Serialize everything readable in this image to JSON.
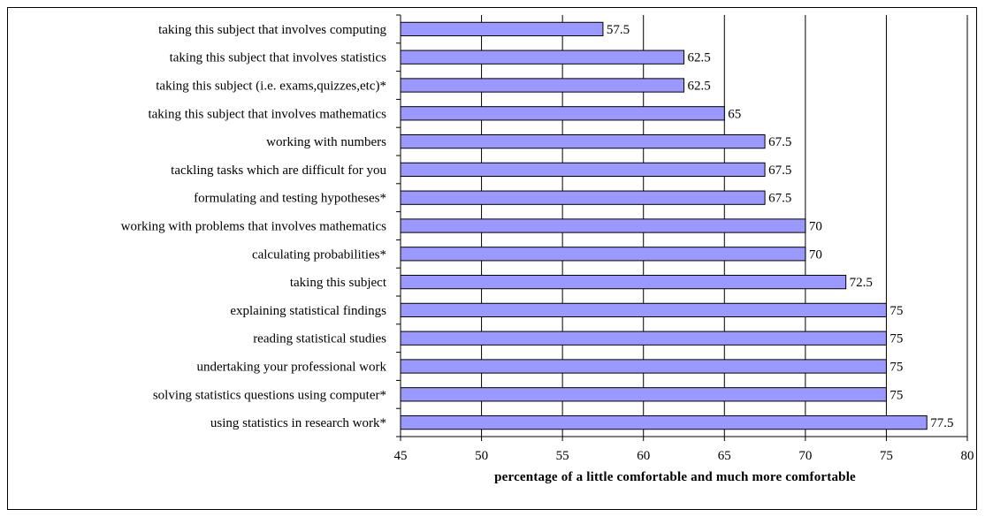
{
  "chart_data": {
    "type": "bar",
    "orientation": "horizontal",
    "categories": [
      "taking this subject that involves computing",
      "taking this subject that involves statistics",
      "taking this subject (i.e. exams,quizzes,etc)*",
      "taking this subject that involves mathematics",
      "working with numbers",
      "tackling tasks which are difficult for you",
      "formulating and testing hypotheses*",
      "working with problems that involves mathematics",
      "calculating probabilities*",
      "taking this subject",
      "explaining statistical findings",
      "reading statistical studies",
      "undertaking your professional work",
      "solving statistics questions using computer*",
      "using statistics in research work*"
    ],
    "values": [
      57.5,
      62.5,
      62.5,
      65,
      67.5,
      67.5,
      67.5,
      70,
      70,
      72.5,
      75,
      75,
      75,
      75,
      77.5
    ],
    "value_labels": [
      "57.5",
      "62.5",
      "62.5",
      "65",
      "67.5",
      "67.5",
      "67.5",
      "70",
      "70",
      "72.5",
      "75",
      "75",
      "75",
      "75",
      "77.5"
    ],
    "xlabel": "percentage of a little comfortable and much more comfortable",
    "ylabel": "",
    "xlim": [
      45,
      80
    ],
    "xticks": [
      45,
      50,
      55,
      60,
      65,
      70,
      75,
      80
    ],
    "grid": "vertical",
    "bar_color": "#9999ff",
    "bar_edge_color": "#000000",
    "legend": "none"
  }
}
